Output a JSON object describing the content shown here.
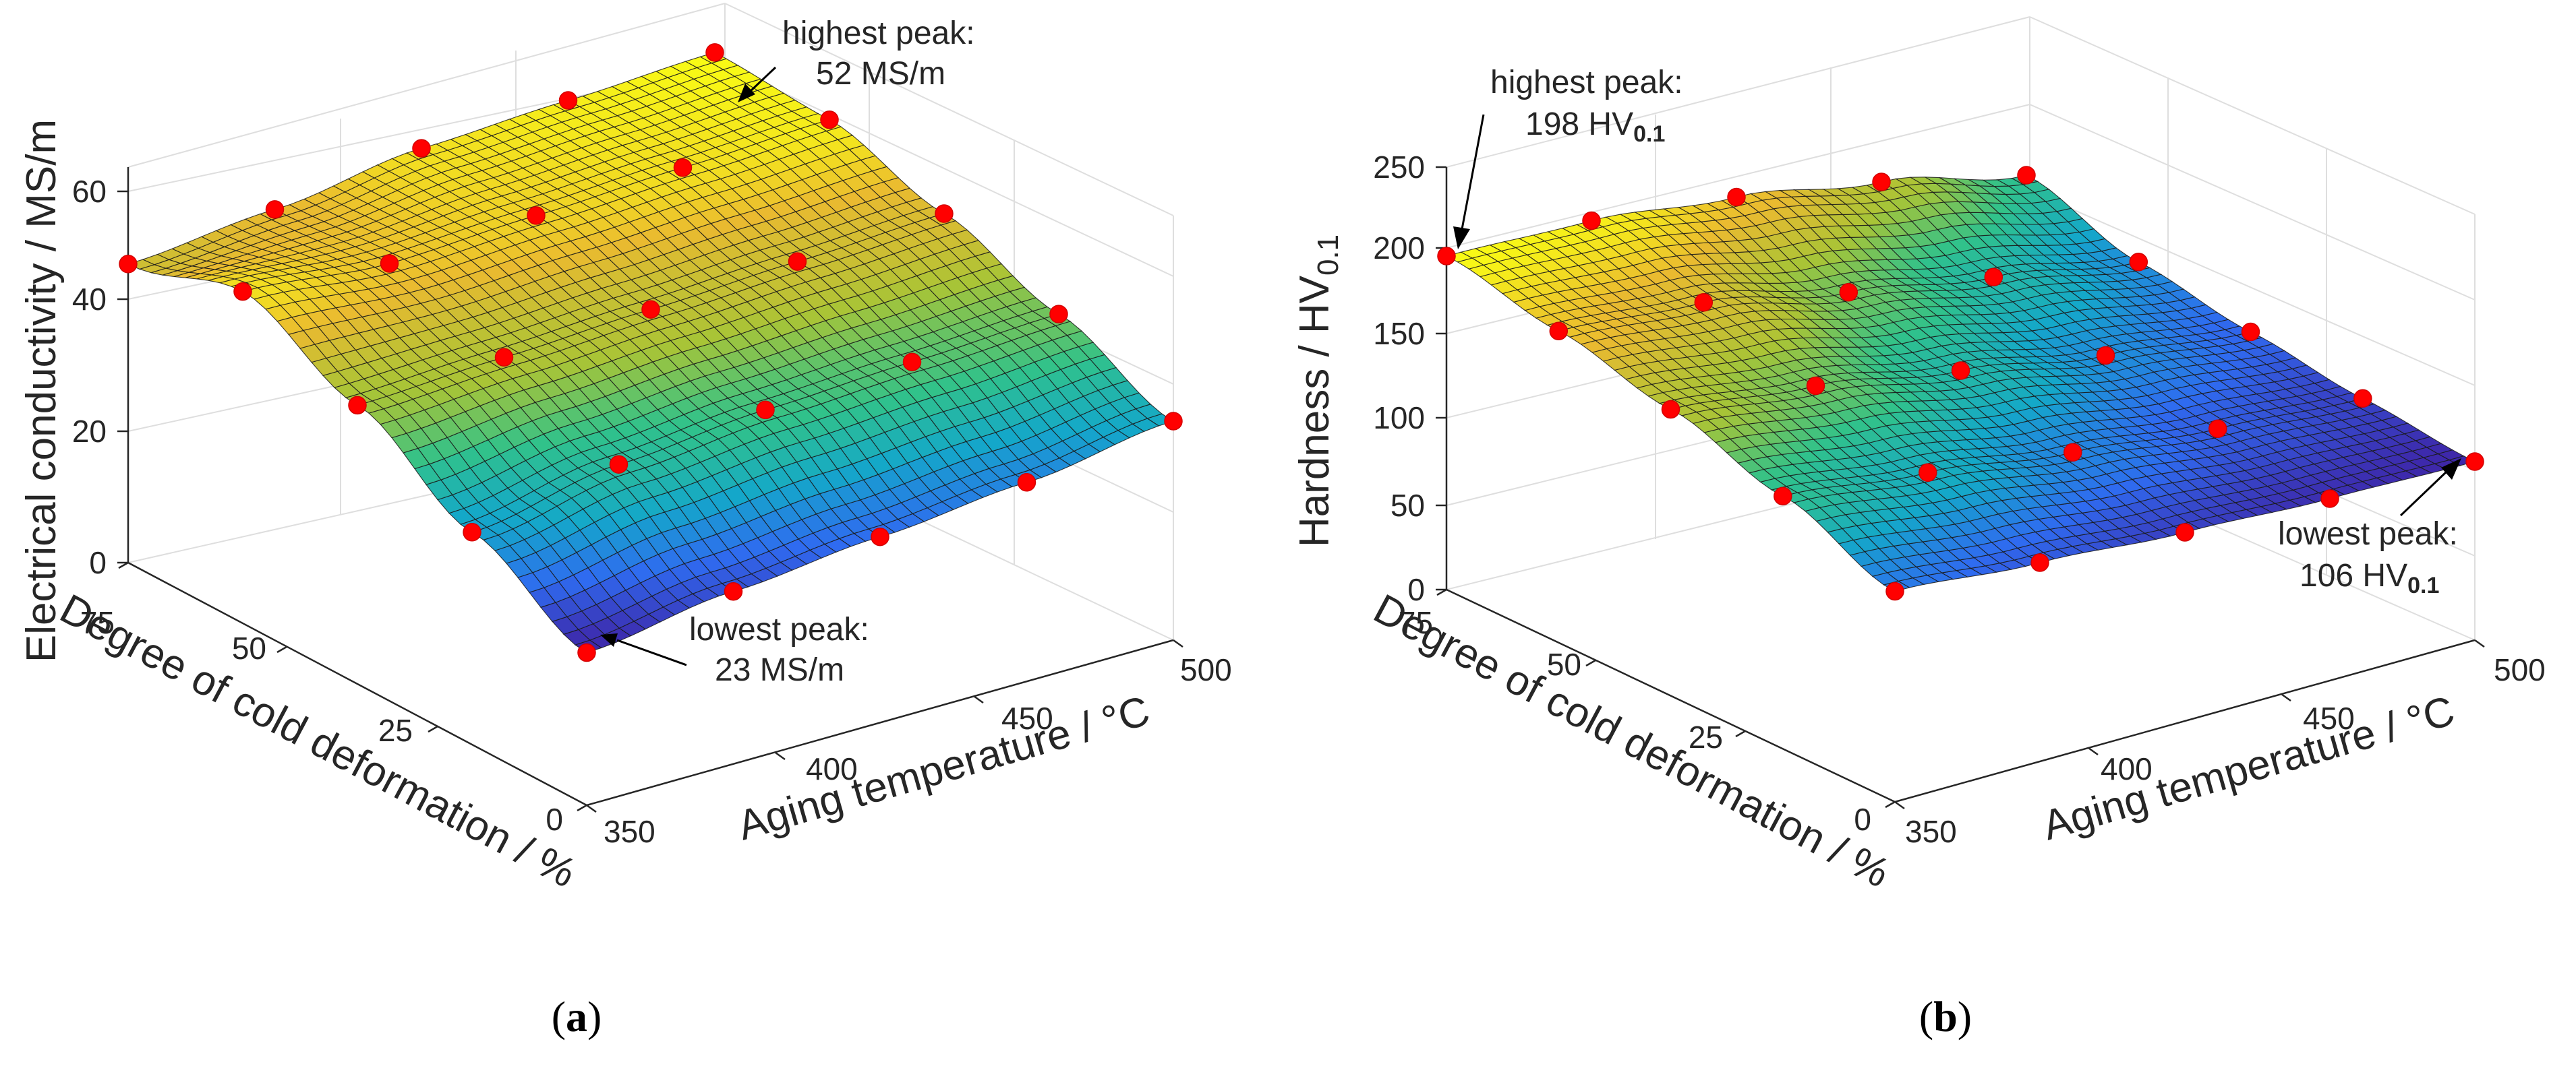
{
  "chart_data": [
    {
      "type": "surface3d",
      "panel_label": "a",
      "title": "",
      "xlabel": "Aging temperature / °C",
      "ylabel": "Degree of cold deformation / %",
      "zlabel": "Electrical conductivity / MS/m",
      "x_ticks": [
        "350",
        "400",
        "450",
        "500"
      ],
      "y_ticks": [
        "0",
        "25",
        "50",
        "75"
      ],
      "z_ticks": [
        "0",
        "20",
        "40",
        "60"
      ],
      "xlim": [
        340,
        500
      ],
      "ylim": [
        0,
        80
      ],
      "zlim": [
        0,
        66
      ],
      "x": [
        340,
        380,
        420,
        460,
        500
      ],
      "y": [
        0,
        20,
        40,
        60,
        80
      ],
      "z": [
        [
          23,
          26,
          28,
          30,
          33
        ],
        [
          32,
          36,
          38,
          39,
          40
        ],
        [
          42,
          43,
          44,
          45,
          46
        ],
        [
          50,
          48,
          49,
          50,
          51
        ],
        [
          45,
          47,
          50,
          51,
          52
        ]
      ],
      "annotations": {
        "highest_line1": "highest peak:",
        "highest_line2": "52 MS/m",
        "lowest_line1": "lowest peak:",
        "lowest_line2": "23 MS/m"
      }
    },
    {
      "type": "surface3d",
      "panel_label": "b",
      "title": "",
      "xlabel": "Aging temperature / °C",
      "ylabel": "Degree of cold deformation / %",
      "zlabel_main": "Hardness / HV",
      "zlabel_sub": "0.1",
      "x_ticks": [
        "350",
        "400",
        "450",
        "500"
      ],
      "y_ticks": [
        "0",
        "25",
        "50",
        "75"
      ],
      "z_ticks": [
        "0",
        "50",
        "100",
        "150",
        "200",
        "250"
      ],
      "xlim": [
        340,
        500
      ],
      "ylim": [
        0,
        80
      ],
      "zlim": [
        0,
        260
      ],
      "x": [
        340,
        380,
        420,
        460,
        500
      ],
      "y": [
        0,
        20,
        40,
        60,
        80
      ],
      "z": [
        [
          125,
          118,
          112,
          108,
          106
        ],
        [
          150,
          140,
          128,
          118,
          112
        ],
        [
          170,
          160,
          145,
          130,
          120
        ],
        [
          185,
          178,
          160,
          145,
          130
        ],
        [
          198,
          195,
          185,
          170,
          150
        ]
      ],
      "annotations": {
        "highest_line1": "highest peak:",
        "highest_value": "198 HV",
        "highest_sub": "0.1",
        "lowest_line1": "lowest peak:",
        "lowest_value": "106 HV",
        "lowest_sub": "0.1"
      }
    }
  ],
  "colormap": [
    "#3e26a8",
    "#2f6bf0",
    "#14a8c9",
    "#31c28a",
    "#a9c436",
    "#eaba30",
    "#f9fb15"
  ]
}
